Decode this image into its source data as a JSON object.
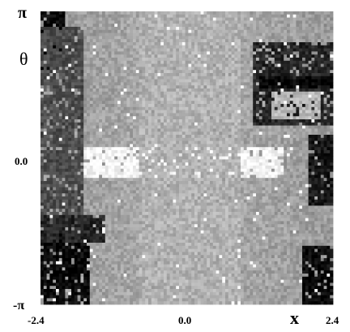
{
  "chart_data": {
    "type": "heatmap",
    "title": "",
    "xlabel": "x",
    "ylabel": "θ",
    "xlim": [
      -2.4,
      2.4
    ],
    "ylim": [
      -3.14159,
      3.14159
    ],
    "x_ticks": [
      "-2.4",
      "0.0",
      "2.4"
    ],
    "y_ticks": [
      "-π",
      "0.0",
      "π"
    ],
    "colormap": "grayscale, black = low, white = high",
    "grid_resolution": [
      95,
      95
    ],
    "value_range": [
      0,
      1
    ],
    "regions": [
      {
        "shape": "background",
        "value": 0.6
      },
      {
        "shape": "top-left dark corner",
        "x": [
          -2.4,
          -2.0
        ],
        "y": [
          1.9,
          3.14159
        ],
        "value": 0.04
      },
      {
        "shape": "left dark wedge",
        "x": [
          -2.4,
          -1.7
        ],
        "y": [
          -1.5,
          2.8
        ],
        "value": 0.3
      },
      {
        "shape": "bottom-left dark hole",
        "x": [
          -2.4,
          -1.6
        ],
        "y": [
          -3.14159,
          -1.6
        ],
        "value": 0.03
      },
      {
        "shape": "left-middle dark band",
        "x": [
          -2.4,
          -1.35
        ],
        "y": [
          -1.8,
          -1.2
        ],
        "value": 0.15
      },
      {
        "shape": "right dark wedge",
        "x": [
          1.1,
          2.4
        ],
        "y": [
          0.7,
          2.5
        ],
        "value": 0.15
      },
      {
        "shape": "right dark band",
        "x": [
          1.2,
          2.4
        ],
        "y": [
          1.5,
          1.75
        ],
        "value": 0.02
      },
      {
        "shape": "right upper light patch",
        "x": [
          1.4,
          2.2
        ],
        "y": [
          0.8,
          1.4
        ],
        "value": 0.72
      },
      {
        "shape": "bottom-right dark hole",
        "x": [
          1.9,
          2.4
        ],
        "y": [
          -3.14159,
          -1.9
        ],
        "value": 0.04
      },
      {
        "shape": "right dark strip",
        "x": [
          2.0,
          2.4
        ],
        "y": [
          -1.0,
          0.5
        ],
        "value": 0.1
      },
      {
        "shape": "bright central streak",
        "x": [
          -1.7,
          1.6
        ],
        "y": [
          -0.45,
          0.25
        ],
        "value": 0.97
      },
      {
        "shape": "light central column",
        "x": [
          -0.8,
          0.9
        ],
        "y": [
          -3.14159,
          3.14159
        ],
        "value": 0.7
      }
    ]
  }
}
